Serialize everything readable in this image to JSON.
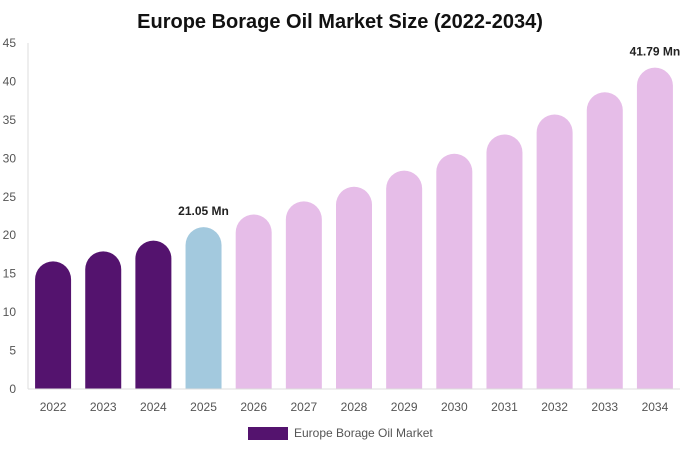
{
  "chart_data": {
    "type": "bar",
    "title": "Europe Borage Oil Market Size (2022-2034)",
    "categories": [
      "2022",
      "2023",
      "2024",
      "2025",
      "2026",
      "2027",
      "2028",
      "2029",
      "2030",
      "2031",
      "2032",
      "2033",
      "2034"
    ],
    "series": [
      {
        "name": "Europe Borage Oil Market",
        "values": [
          16.6,
          17.9,
          19.3,
          21.05,
          22.7,
          24.4,
          26.3,
          28.4,
          30.6,
          33.1,
          35.7,
          38.6,
          41.79
        ]
      }
    ],
    "ylim": [
      0,
      45
    ],
    "yticks": [
      "0",
      "5",
      "10",
      "15",
      "20",
      "25",
      "30",
      "35",
      "40",
      "45"
    ],
    "data_labels": [
      {
        "category": "2025",
        "text": "21.05 Mn"
      },
      {
        "category": "2034",
        "text": "41.79 Mn"
      }
    ],
    "bar_colors": [
      "#54136e",
      "#54136e",
      "#54136e",
      "#a3c9de",
      "#e6bde8",
      "#e6bde8",
      "#e6bde8",
      "#e6bde8",
      "#e6bde8",
      "#e6bde8",
      "#e6bde8",
      "#e6bde8",
      "#e6bde8"
    ],
    "legend_color": "#54136e",
    "legend_position": "bottom-center",
    "grid": false
  }
}
